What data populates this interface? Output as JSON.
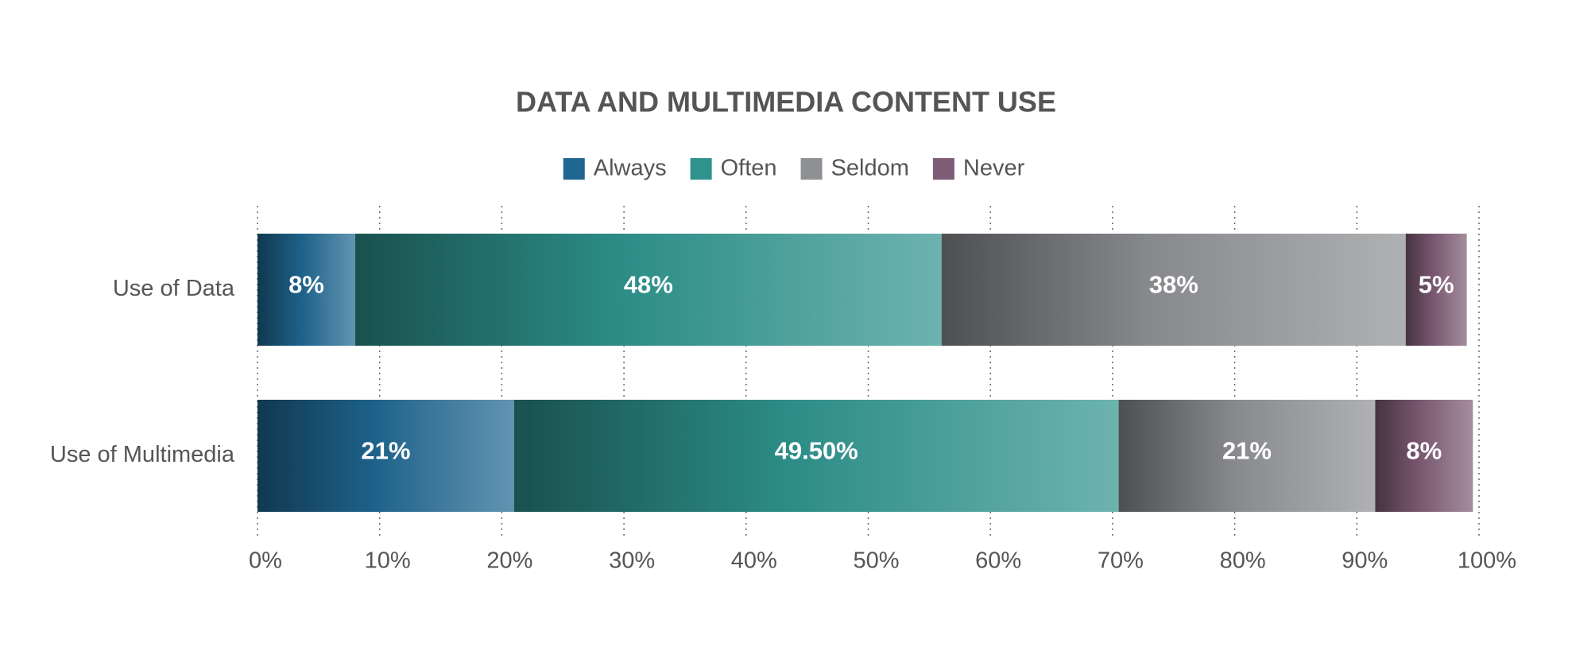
{
  "chart_data": {
    "type": "stacked-bar-horizontal",
    "title": "DATA AND MULTIMEDIA CONTENT USE",
    "categories": [
      "Use of Data",
      "Use of Multimedia"
    ],
    "series": [
      {
        "name": "Always",
        "color": "#1f6690",
        "values": [
          8,
          21
        ],
        "value_labels": [
          "8%",
          "21%"
        ]
      },
      {
        "name": "Often",
        "color": "#2e938d",
        "values": [
          48,
          49.5
        ],
        "value_labels": [
          "48%",
          "49.50%"
        ]
      },
      {
        "name": "Seldom",
        "color": "#8e9093",
        "values": [
          38,
          21
        ],
        "value_labels": [
          "38%",
          "21%"
        ]
      },
      {
        "name": "Never",
        "color": "#7e5c75",
        "values": [
          5,
          8
        ],
        "value_labels": [
          "5%",
          "8%"
        ]
      }
    ],
    "xlim": [
      0,
      100
    ],
    "xticks": [
      {
        "value": 0,
        "label": "0%"
      },
      {
        "value": 10,
        "label": "10%"
      },
      {
        "value": 20,
        "label": "20%"
      },
      {
        "value": 30,
        "label": "30%"
      },
      {
        "value": 40,
        "label": "40%"
      },
      {
        "value": 50,
        "label": "50%"
      },
      {
        "value": 60,
        "label": "60%"
      },
      {
        "value": 70,
        "label": "70%"
      },
      {
        "value": 80,
        "label": "80%"
      },
      {
        "value": 90,
        "label": "90%"
      },
      {
        "value": 100,
        "label": "100%"
      }
    ],
    "grid": true,
    "legend": "top"
  }
}
